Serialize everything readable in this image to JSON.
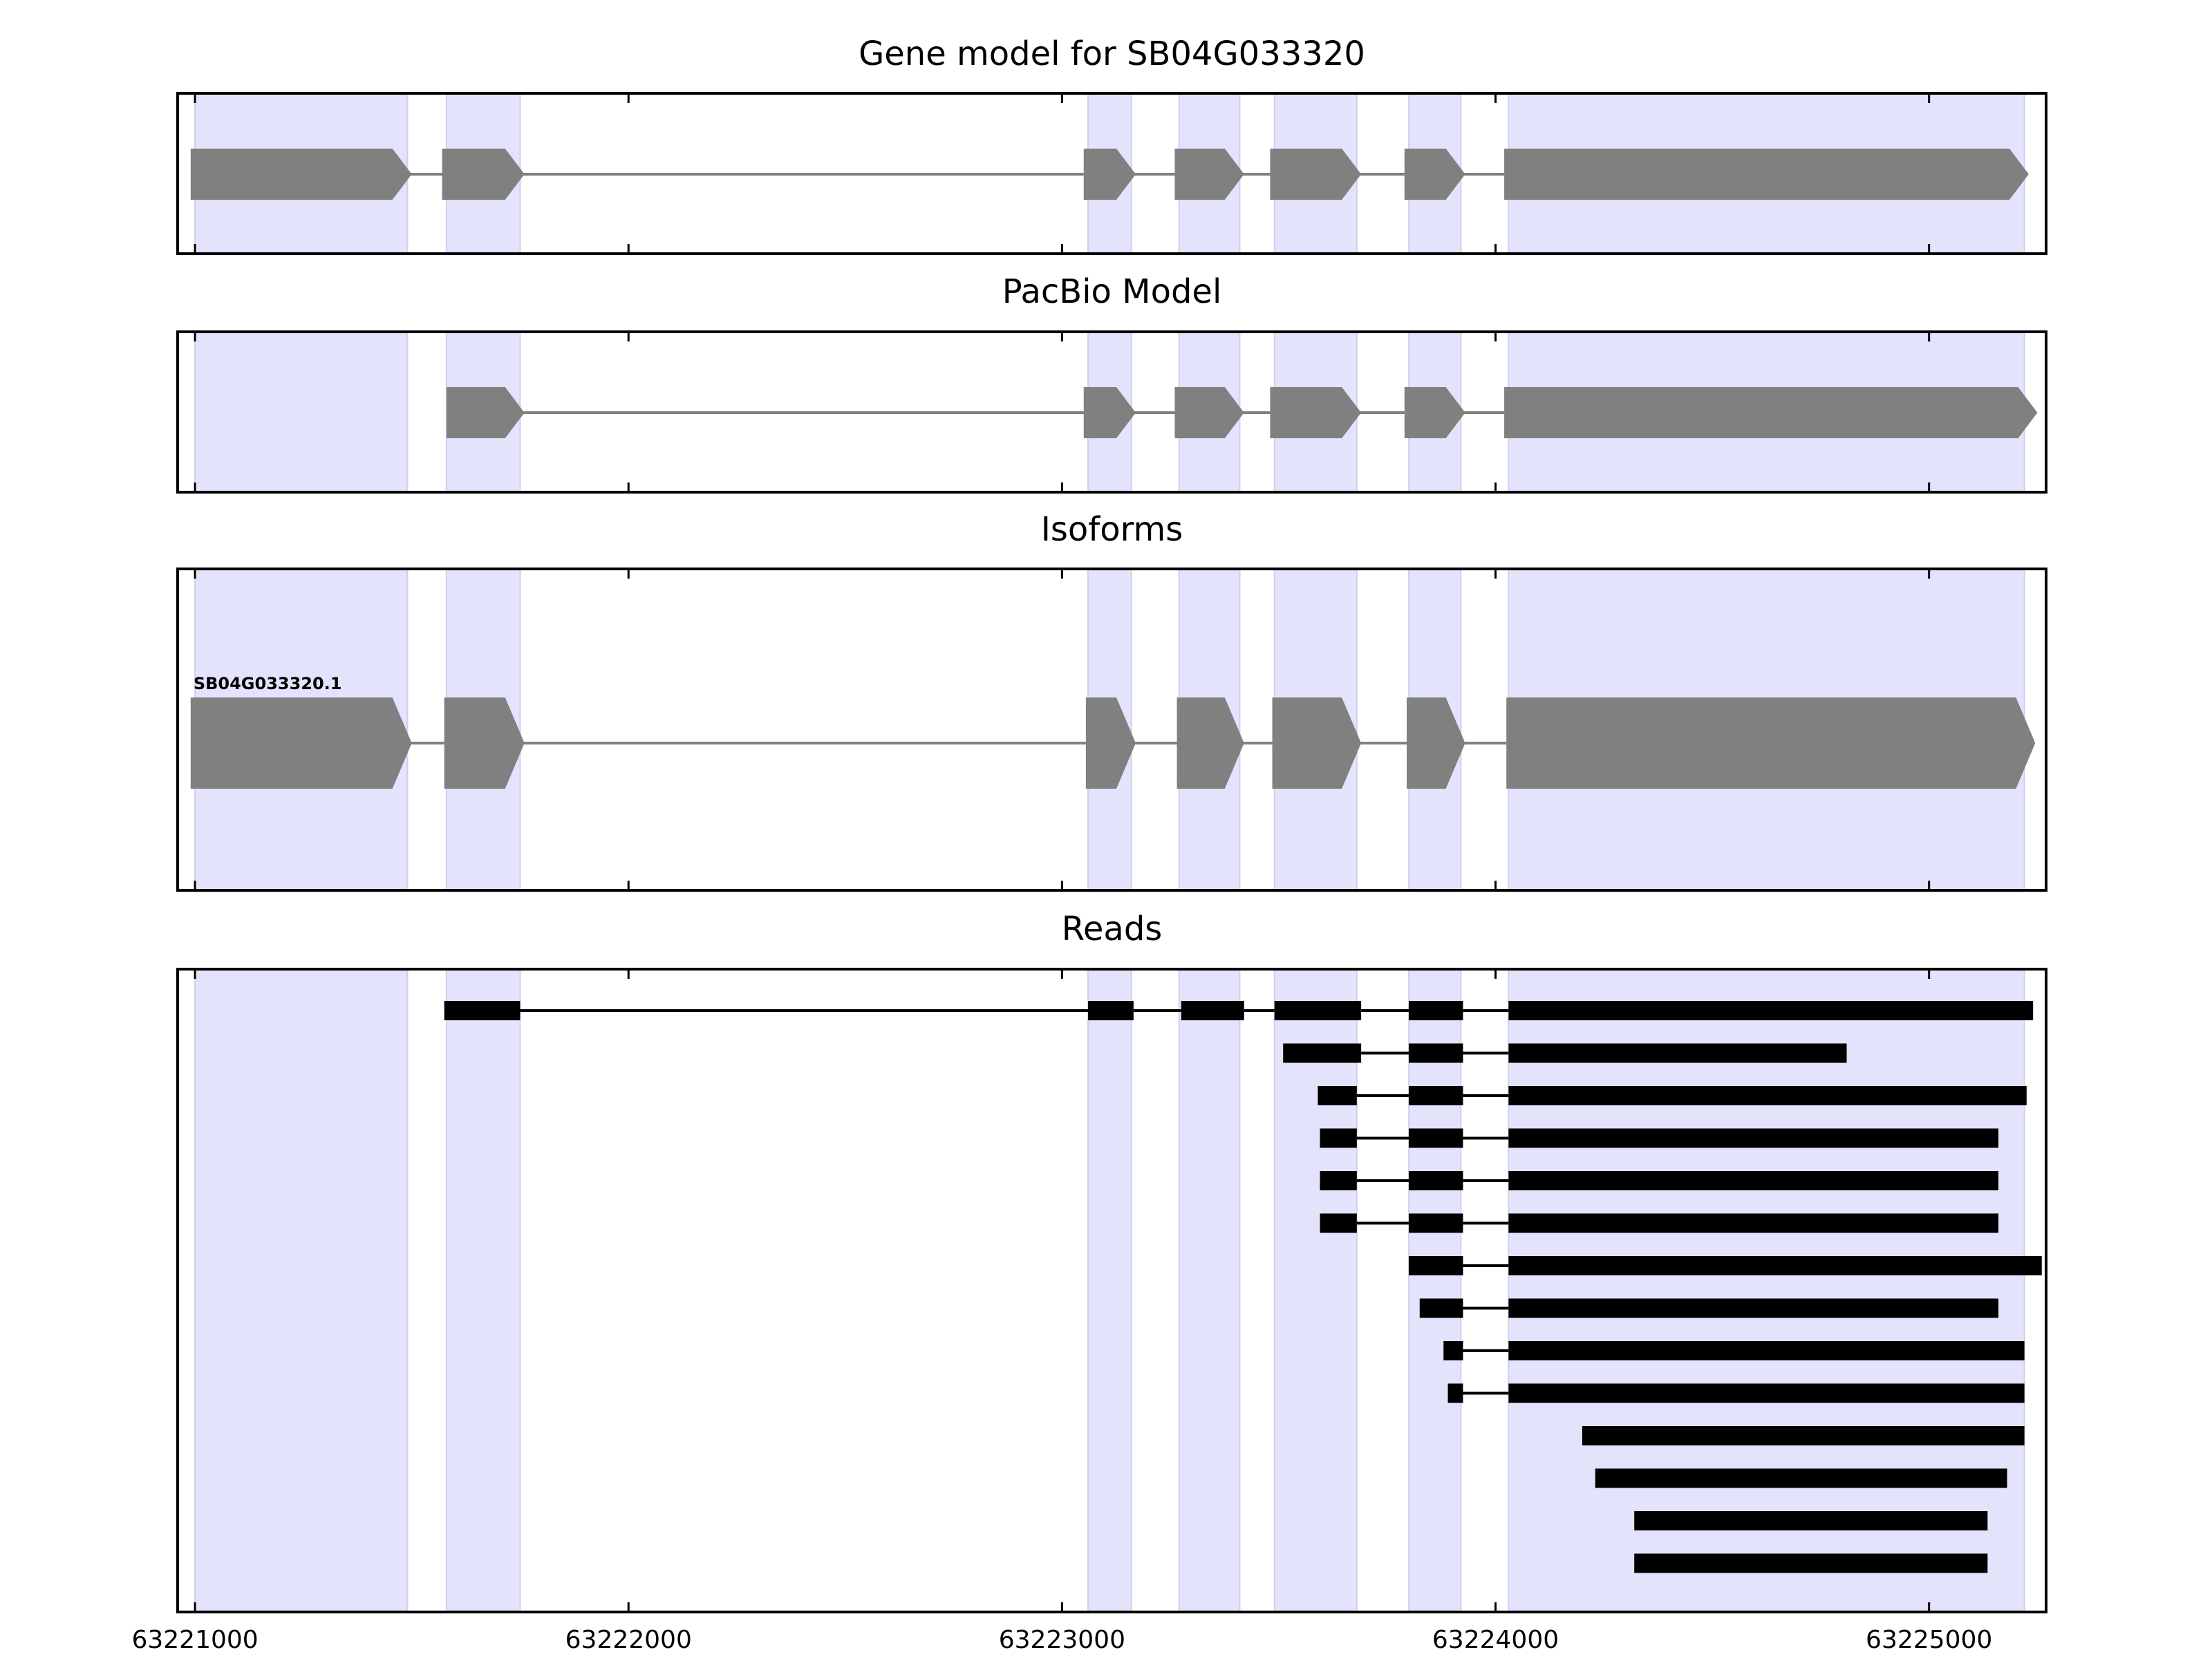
{
  "colors": {
    "exon_band": "#e3e3fb",
    "exon_band_edge": "#cfcff0",
    "gene_block": "#808080",
    "read_block": "#000000",
    "frame": "#000000"
  },
  "chart_data": {
    "type": "gene-track",
    "xlim": [
      63220960,
      63225270
    ],
    "ticks": [
      63221000,
      63222000,
      63223000,
      63224000,
      63225000
    ],
    "tick_labels": [
      "63221000",
      "63222000",
      "63223000",
      "63224000",
      "63225000"
    ],
    "exon_bands": [
      [
        63221000,
        63221490
      ],
      [
        63221580,
        63221750
      ],
      [
        63223060,
        63223160
      ],
      [
        63223270,
        63223410
      ],
      [
        63223490,
        63223680
      ],
      [
        63223800,
        63223920
      ],
      [
        63224030,
        63225220
      ]
    ],
    "panels": [
      {
        "title": "Gene model for SB04G033320",
        "kind": "gene",
        "models": [
          {
            "label": "",
            "strand": "+",
            "exons": [
              [
                63220990,
                63221500
              ],
              [
                63221570,
                63221760
              ],
              [
                63223050,
                63223170
              ],
              [
                63223260,
                63223420
              ],
              [
                63223480,
                63223690
              ],
              [
                63223790,
                63223930
              ],
              [
                63224020,
                63225230
              ]
            ]
          }
        ]
      },
      {
        "title": "PacBio Model",
        "kind": "gene",
        "models": [
          {
            "label": "",
            "strand": "+",
            "exons": [
              [
                63221580,
                63221760
              ],
              [
                63223050,
                63223170
              ],
              [
                63223260,
                63223420
              ],
              [
                63223480,
                63223690
              ],
              [
                63223790,
                63223930
              ],
              [
                63224020,
                63225250
              ]
            ]
          }
        ]
      },
      {
        "title": "Isoforms",
        "kind": "gene",
        "models": [
          {
            "label": "SB04G033320.1",
            "strand": "+",
            "exons": [
              [
                63220990,
                63221500
              ],
              [
                63221575,
                63221760
              ],
              [
                63223055,
                63223170
              ],
              [
                63223265,
                63223420
              ],
              [
                63223485,
                63223690
              ],
              [
                63223795,
                63223930
              ],
              [
                63224025,
                63225245
              ]
            ]
          }
        ]
      },
      {
        "title": "Reads",
        "kind": "reads",
        "reads": [
          [
            [
              63221575,
              63221750
            ],
            [
              63223060,
              63223165
            ],
            [
              63223275,
              63223420
            ],
            [
              63223490,
              63223690
            ],
            [
              63223800,
              63223925
            ],
            [
              63224030,
              63225240
            ]
          ],
          [
            [
              63223510,
              63223690
            ],
            [
              63223800,
              63223925
            ],
            [
              63224030,
              63224810
            ]
          ],
          [
            [
              63223590,
              63223680
            ],
            [
              63223800,
              63223925
            ],
            [
              63224030,
              63225225
            ]
          ],
          [
            [
              63223595,
              63223680
            ],
            [
              63223800,
              63223925
            ],
            [
              63224030,
              63225160
            ]
          ],
          [
            [
              63223595,
              63223680
            ],
            [
              63223800,
              63223925
            ],
            [
              63224030,
              63225160
            ]
          ],
          [
            [
              63223595,
              63223680
            ],
            [
              63223800,
              63223925
            ],
            [
              63224030,
              63225160
            ]
          ],
          [
            [
              63223800,
              63223925
            ],
            [
              63224030,
              63225260
            ]
          ],
          [
            [
              63223825,
              63223925
            ],
            [
              63224030,
              63225160
            ]
          ],
          [
            [
              63223880,
              63223925
            ],
            [
              63224030,
              63225220
            ]
          ],
          [
            [
              63223890,
              63223925
            ],
            [
              63224030,
              63225220
            ]
          ],
          [
            [
              63224200,
              63225220
            ]
          ],
          [
            [
              63224230,
              63225180
            ]
          ],
          [
            [
              63224320,
              63225135
            ]
          ],
          [
            [
              63224320,
              63225135
            ]
          ]
        ]
      }
    ]
  }
}
